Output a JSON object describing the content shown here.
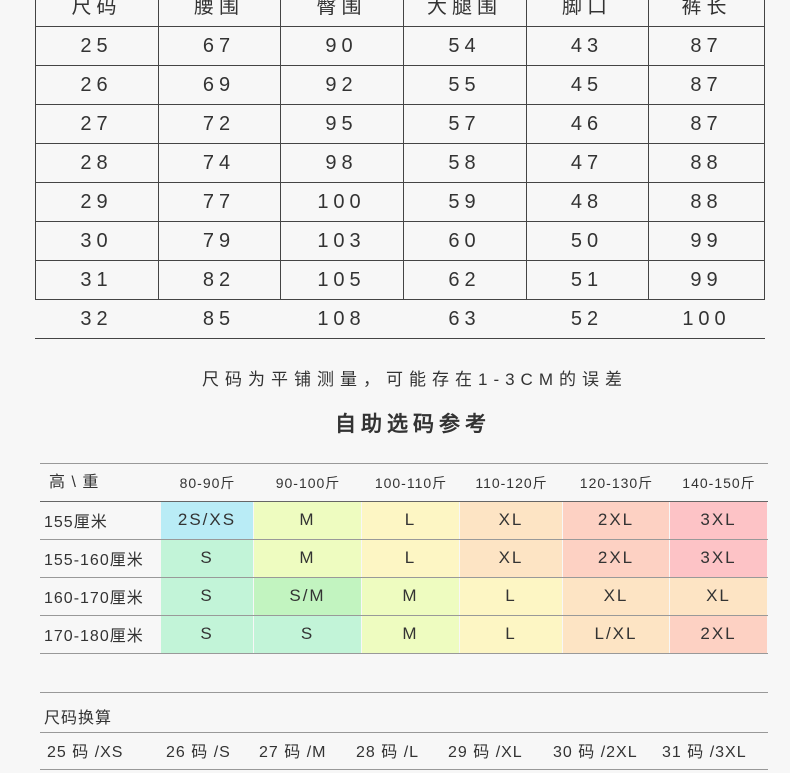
{
  "size_table": {
    "headers": [
      "尺码",
      "腰围",
      "臀围",
      "大腿围",
      "脚口",
      "裤长"
    ],
    "rows": [
      [
        "25",
        "67",
        "90",
        "54",
        "43",
        "87"
      ],
      [
        "26",
        "69",
        "92",
        "55",
        "45",
        "87"
      ],
      [
        "27",
        "72",
        "95",
        "57",
        "46",
        "87"
      ],
      [
        "28",
        "74",
        "98",
        "58",
        "47",
        "88"
      ],
      [
        "29",
        "77",
        "100",
        "59",
        "48",
        "88"
      ],
      [
        "30",
        "79",
        "103",
        "60",
        "50",
        "99"
      ],
      [
        "31",
        "82",
        "105",
        "62",
        "51",
        "99"
      ],
      [
        "32",
        "85",
        "108",
        "63",
        "52",
        "100"
      ]
    ]
  },
  "note": "尺码为平铺测量，可能存在1-3CM的误差",
  "guide_title": "自助选码参考",
  "guide": {
    "corner": "高 \\ 重",
    "weights": [
      "80-90斤",
      "90-100斤",
      "100-110斤",
      "110-120斤",
      "120-130斤",
      "140-150斤"
    ],
    "rows": [
      {
        "height": "155厘米",
        "sizes": [
          "2S/XS",
          "M",
          "L",
          "XL",
          "2XL",
          "3XL"
        ]
      },
      {
        "height": "155-160厘米",
        "sizes": [
          "S",
          "M",
          "L",
          "XL",
          "2XL",
          "3XL"
        ]
      },
      {
        "height": "160-170厘米",
        "sizes": [
          "S",
          "S/M",
          "M",
          "L",
          "XL",
          "XL"
        ]
      },
      {
        "height": "170-180厘米",
        "sizes": [
          "S",
          "S",
          "M",
          "L",
          "L/XL",
          "2XL"
        ]
      }
    ],
    "colors": [
      [
        "#b9ecf6",
        "#eefcc0",
        "#fdf6c4",
        "#fde4c4",
        "#fdd1c3",
        "#fdc3c6"
      ],
      [
        "#c2f4d8",
        "#eefcc0",
        "#fdf6c4",
        "#fde4c4",
        "#fdd1c3",
        "#fdc3c6"
      ],
      [
        "#c2f4d8",
        "#c2f4c0",
        "#eefcc0",
        "#fdf6c4",
        "#fde4c4",
        "#fde4c4"
      ],
      [
        "#c2f4d8",
        "#c2f4d8",
        "#eefcc0",
        "#fdf6c4",
        "#fde4c4",
        "#fdd1c3"
      ]
    ]
  },
  "conversion": {
    "title": "尺码换算",
    "items": [
      "25 码 /XS",
      "26 码 /S",
      "27 码 /M",
      "28 码 /L",
      "29 码 /XL",
      "30 码 /2XL",
      "31 码 /3XL"
    ]
  }
}
